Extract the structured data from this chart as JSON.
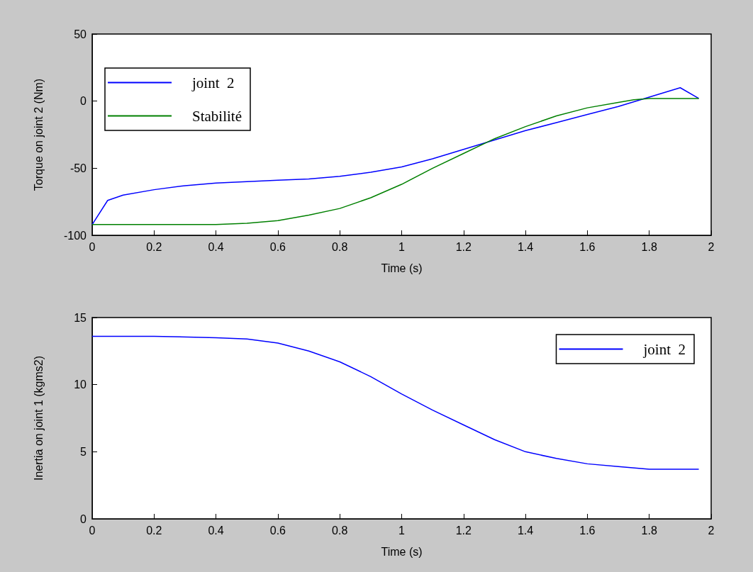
{
  "chart_data": [
    {
      "type": "line",
      "xlabel": "Time (s)",
      "ylabel": "Torque on joint 2 (Nm)",
      "xlim": [
        0,
        2
      ],
      "xticks": [
        0,
        0.2,
        0.4,
        0.6,
        0.8,
        1,
        1.2,
        1.4,
        1.6,
        1.8,
        2
      ],
      "ylim": [
        -100,
        50
      ],
      "yticks": [
        -100,
        -50,
        0,
        50
      ],
      "grid": false,
      "legend": "top left",
      "marker": "none",
      "line_style": "solid",
      "series": [
        {
          "name": "joint  2",
          "color": "#0000ff",
          "x": [
            0,
            0.05,
            0.1,
            0.2,
            0.3,
            0.4,
            0.5,
            0.6,
            0.7,
            0.8,
            0.9,
            1.0,
            1.1,
            1.2,
            1.3,
            1.4,
            1.5,
            1.6,
            1.7,
            1.8,
            1.9,
            1.96
          ],
          "values": [
            -92,
            -74,
            -70,
            -66,
            -63,
            -61,
            -60,
            -59,
            -58,
            -56,
            -53,
            -49,
            -43,
            -36,
            -29,
            -22,
            -16,
            -10,
            -4,
            3,
            10,
            2
          ]
        },
        {
          "name": "Stabilité",
          "color": "#008000",
          "x": [
            0,
            0.2,
            0.4,
            0.5,
            0.6,
            0.7,
            0.8,
            0.9,
            1.0,
            1.1,
            1.2,
            1.3,
            1.4,
            1.5,
            1.6,
            1.7,
            1.75,
            1.8,
            1.96
          ],
          "values": [
            -92,
            -92,
            -92,
            -91,
            -89,
            -85,
            -80,
            -72,
            -62,
            -50,
            -39,
            -28,
            -19,
            -11,
            -5,
            -1,
            1,
            2,
            2
          ]
        }
      ]
    },
    {
      "type": "line",
      "xlabel": "Time (s)",
      "ylabel": "Inertia on joint 1 (kgms2)",
      "xlim": [
        0,
        2
      ],
      "xticks": [
        0,
        0.2,
        0.4,
        0.6,
        0.8,
        1,
        1.2,
        1.4,
        1.6,
        1.8,
        2
      ],
      "ylim": [
        0,
        15
      ],
      "yticks": [
        0,
        5,
        10,
        15
      ],
      "grid": false,
      "legend": "top right",
      "marker": "none",
      "line_style": "solid",
      "series": [
        {
          "name": "joint  2",
          "color": "#0000ff",
          "x": [
            0,
            0.2,
            0.4,
            0.5,
            0.6,
            0.7,
            0.8,
            0.9,
            1.0,
            1.1,
            1.2,
            1.3,
            1.4,
            1.5,
            1.6,
            1.7,
            1.8,
            1.96
          ],
          "values": [
            13.6,
            13.6,
            13.5,
            13.4,
            13.1,
            12.5,
            11.7,
            10.6,
            9.3,
            8.1,
            7.0,
            5.9,
            5.0,
            4.5,
            4.1,
            3.9,
            3.7,
            3.7
          ]
        }
      ]
    }
  ]
}
